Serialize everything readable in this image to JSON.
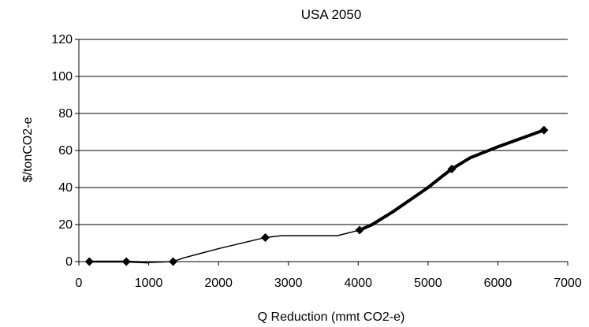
{
  "chart_data": {
    "type": "line",
    "title": "USA 2050",
    "xlabel": "Q Reduction (mmt CO2-e)",
    "ylabel": "$/tonCO2-e",
    "xlim": [
      0,
      7000
    ],
    "ylim": [
      0,
      120
    ],
    "xticks": [
      "0",
      "1000",
      "2000",
      "3000",
      "4000",
      "5000",
      "6000",
      "7000"
    ],
    "yticks": [
      "0",
      "20",
      "40",
      "60",
      "80",
      "100",
      "120"
    ],
    "grid": "horizontal",
    "legend": "none",
    "series": [
      {
        "x": [
          150,
          680,
          1000,
          1350,
          1500,
          2000,
          2670,
          2900,
          3700,
          4020,
          4200,
          4500,
          5000,
          5200,
          5340,
          5600,
          6000,
          6660
        ],
        "y": [
          0,
          0,
          -0.5,
          0,
          2,
          7,
          13,
          14,
          14,
          17,
          20,
          27,
          40,
          46,
          50,
          56,
          62,
          71
        ],
        "markers": {
          "x": [
            150,
            680,
            1350,
            2670,
            4020,
            5340,
            6660
          ],
          "y": [
            0,
            0,
            0,
            13,
            17,
            50,
            71
          ]
        }
      }
    ]
  }
}
